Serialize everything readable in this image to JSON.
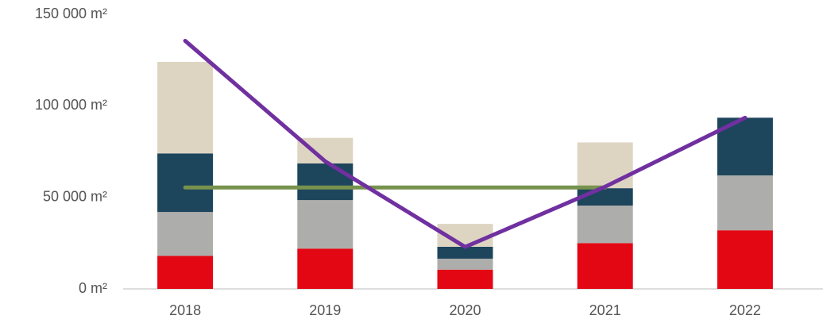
{
  "chart_data": {
    "type": "bar",
    "stacked": true,
    "categories": [
      "2018",
      "2019",
      "2020",
      "2021",
      "2022"
    ],
    "series": [
      {
        "type": "bar",
        "color": "#e30613",
        "values": [
          18000,
          22000,
          10500,
          25000,
          32000
        ]
      },
      {
        "type": "bar",
        "color": "#adadab",
        "values": [
          24000,
          26500,
          6000,
          20500,
          30000
        ]
      },
      {
        "type": "bar",
        "color": "#1d455c",
        "values": [
          32000,
          20000,
          6500,
          9500,
          31500
        ]
      },
      {
        "type": "bar",
        "color": "#ddd5c2",
        "values": [
          50000,
          14000,
          12500,
          25000,
          0
        ]
      },
      {
        "type": "line",
        "color": "#76924d",
        "values": [
          55400,
          55400,
          55400,
          55400,
          null
        ]
      },
      {
        "type": "line",
        "color": "#7030a0",
        "values": [
          135500,
          69700,
          22900,
          55800,
          93500
        ]
      }
    ],
    "ylim": [
      0,
      150000
    ],
    "yticks": [
      {
        "value": 0,
        "label": "0 m²"
      },
      {
        "value": 50000,
        "label": "50 000 m²"
      },
      {
        "value": 100000,
        "label": "100 000 m²"
      },
      {
        "value": 150000,
        "label": "150 000 m²"
      }
    ],
    "grid": false
  }
}
